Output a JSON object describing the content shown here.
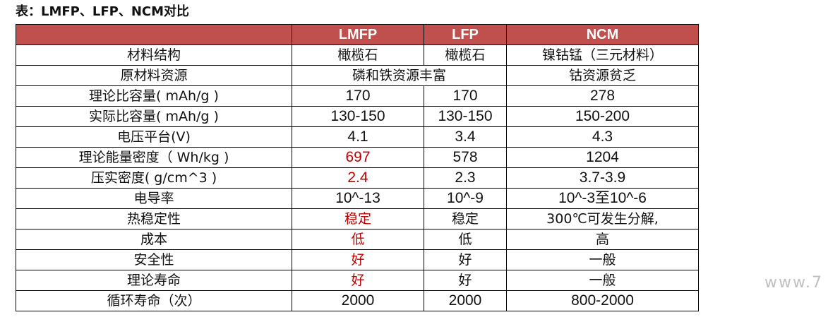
{
  "caption": "表：LMFP、LFP、NCM对比",
  "header": {
    "col0": "",
    "col1": "LMFP",
    "col2": "LFP",
    "col3": "NCM"
  },
  "rows": [
    {
      "label": "材料结构",
      "lmfp": "橄榄石",
      "lfp": "橄榄石",
      "ncm": "镍钴锰（三元材料）"
    },
    {
      "label": "原材料资源",
      "lmfp_lfp": "磷和铁资源丰富",
      "ncm": "钴资源贫乏"
    },
    {
      "label": "理论比容量( mAh/g )",
      "lmfp": "170",
      "lfp": "170",
      "ncm": "278"
    },
    {
      "label": "实际比容量( mAh/g )",
      "lmfp": "130-150",
      "lfp": "130-150",
      "ncm": "150-200"
    },
    {
      "label": "电压平台(V)",
      "lmfp": "4.1",
      "lfp": "3.4",
      "ncm": "4.3"
    },
    {
      "label": "理论能量密度（ Wh/kg )",
      "lmfp": "697",
      "lfp": "578",
      "ncm": "1204"
    },
    {
      "label": "压实密度( g/cm^3 )",
      "lmfp": "2.4",
      "lfp": "2.3",
      "ncm": "3.7-3.9"
    },
    {
      "label": "电导率",
      "lmfp": "10^-13",
      "lfp": "10^-9",
      "ncm": "10^-3至10^-6"
    },
    {
      "label": "热稳定性",
      "lmfp": "稳定",
      "lfp": "稳定",
      "ncm": "300℃可发生分解,"
    },
    {
      "label": "成本",
      "lmfp": "低",
      "lfp": "低",
      "ncm": "高"
    },
    {
      "label": "安全性",
      "lmfp": "好",
      "lfp": "好",
      "ncm": "一般"
    },
    {
      "label": "理论寿命",
      "lmfp": "好",
      "lfp": "好",
      "ncm": "一般"
    },
    {
      "label": "循环寿命（次）",
      "lmfp": "2000",
      "lfp": "2000",
      "ncm": "800-2000"
    }
  ],
  "watermark": "www.7",
  "colors": {
    "header_bg": "#c0504d",
    "header_text": "#ffffff",
    "highlight_text": "#c00000",
    "border": "#000000",
    "watermark": "#bfbfbf"
  }
}
